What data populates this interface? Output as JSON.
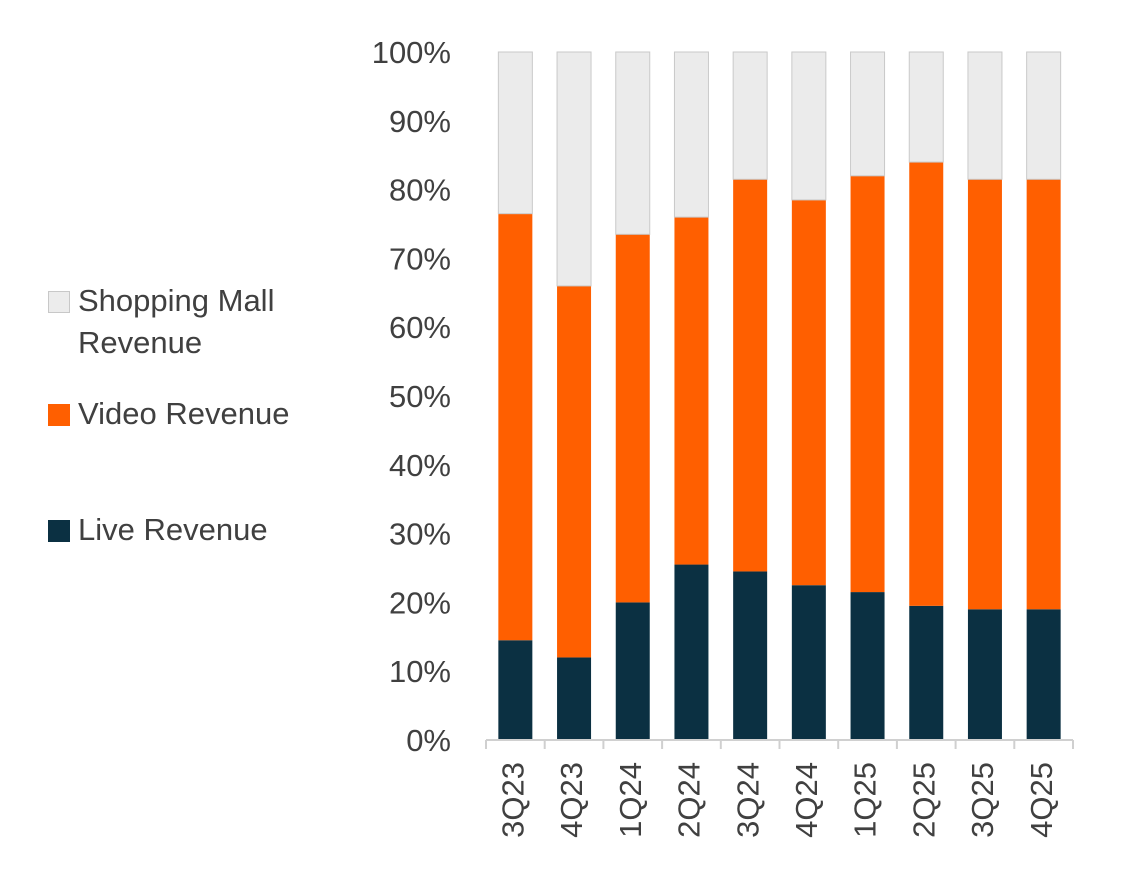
{
  "chart_data": {
    "type": "bar",
    "stacked": true,
    "categories": [
      "3Q23",
      "4Q23",
      "1Q24",
      "2Q24",
      "3Q24",
      "4Q24",
      "1Q25",
      "2Q25",
      "3Q25",
      "4Q25"
    ],
    "series": [
      {
        "name": "Live Revenue",
        "color": "#0b3042",
        "values": [
          14.5,
          12,
          20,
          25.5,
          24.5,
          22.5,
          21.5,
          19.5,
          19,
          19
        ]
      },
      {
        "name": "Video Revenue",
        "color": "#ff5f00",
        "values": [
          62,
          54,
          53.5,
          50.5,
          57,
          56,
          60.5,
          64.5,
          62.5,
          62.5
        ]
      },
      {
        "name": "Shopping Mall Revenue",
        "color": "#ebebeb",
        "values": [
          23.5,
          34,
          26.5,
          24,
          18.5,
          21.5,
          18,
          16,
          18.5,
          18.5
        ]
      }
    ],
    "y_ticks": [
      "0%",
      "10%",
      "20%",
      "30%",
      "40%",
      "50%",
      "60%",
      "70%",
      "80%",
      "90%",
      "100%"
    ],
    "ylim": [
      0,
      100
    ],
    "title": "",
    "xlabel": "",
    "ylabel": "",
    "legend_position": "left"
  },
  "legend": {
    "items": [
      {
        "key": "mall",
        "label": "Shopping Mall Revenue"
      },
      {
        "key": "video",
        "label": "Video Revenue"
      },
      {
        "key": "live",
        "label": "Live Revenue"
      }
    ]
  }
}
